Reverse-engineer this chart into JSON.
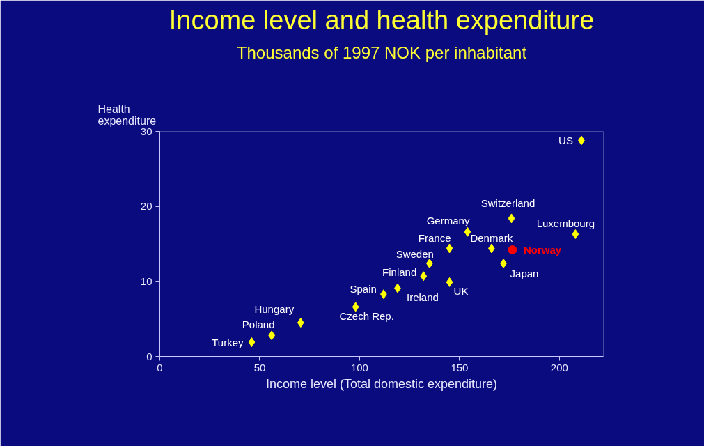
{
  "chart_data": {
    "type": "scatter",
    "title": "Income level and health expenditure",
    "subtitle": "Thousands of 1997 NOK per inhabitant",
    "xlabel": "Income level (Total domestic expenditure)",
    "ylabel": "Health expenditure",
    "xlim": [
      0,
      222
    ],
    "ylim": [
      0,
      30
    ],
    "xticks": [
      0,
      50,
      100,
      150,
      200
    ],
    "yticks": [
      0,
      10,
      20,
      30
    ],
    "series": [
      {
        "color": "#ffff00",
        "marker": "diamond",
        "x": [
          46,
          56,
          70.5,
          98,
          112,
          119,
          132,
          135,
          145,
          145,
          154,
          166,
          172,
          176,
          208,
          211
        ],
        "values": [
          1.9,
          2.8,
          4.5,
          6.6,
          8.3,
          9.1,
          10.7,
          12.4,
          14.4,
          9.9,
          16.6,
          14.4,
          12.4,
          18.4,
          16.3,
          28.8
        ],
        "value_labels": [
          "Turkey",
          "Poland",
          "Hungary",
          "Czech Rep.",
          "Spain",
          "Ireland",
          "Finland",
          "Sweden",
          "France",
          "UK",
          "Germany",
          "Denmark",
          "Japan",
          "Switzerland",
          "Luxembourg",
          "US"
        ]
      },
      {
        "name": "Norway",
        "color": "#ff0000",
        "marker": "circle",
        "x": [
          176.5
        ],
        "values": [
          14.2
        ]
      }
    ]
  }
}
